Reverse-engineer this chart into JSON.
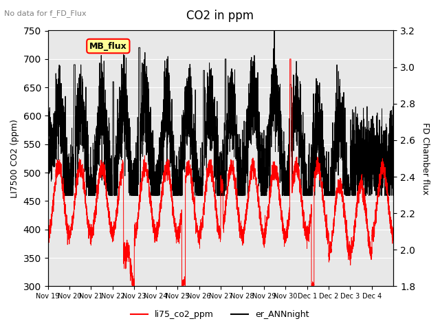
{
  "title": "CO2 in ppm",
  "top_left_text": "No data for f_FD_Flux",
  "ylabel_left": "LI7500 CO2 (ppm)",
  "ylabel_right": "FD Chamber flux",
  "ylim_left": [
    300,
    750
  ],
  "ylim_right": [
    1.8,
    3.2
  ],
  "yticks_left": [
    300,
    350,
    400,
    450,
    500,
    550,
    600,
    650,
    700,
    750
  ],
  "yticks_right": [
    1.8,
    2.0,
    2.2,
    2.4,
    2.6,
    2.8,
    3.0,
    3.2
  ],
  "xtick_labels": [
    "Nov 19",
    "Nov 20",
    "Nov 21",
    "Nov 22",
    "Nov 23",
    "Nov 24",
    "Nov 25",
    "Nov 26",
    "Nov 27",
    "Nov 28",
    "Nov 29",
    "Nov 30",
    "Dec 1",
    "Dec 2",
    "Dec 3",
    "Dec 4"
  ],
  "legend_labels": [
    "li75_co2_ppm",
    "er_ANNnight"
  ],
  "legend_colors": [
    "red",
    "black"
  ],
  "annotation_box_text": "MB_flux",
  "annotation_box_color": "#FFFF99",
  "annotation_box_edgecolor": "red",
  "background_color": "#E8E8E8",
  "line_color_red": "red",
  "line_color_black": "black",
  "figsize": [
    6.4,
    4.8
  ],
  "dpi": 100
}
